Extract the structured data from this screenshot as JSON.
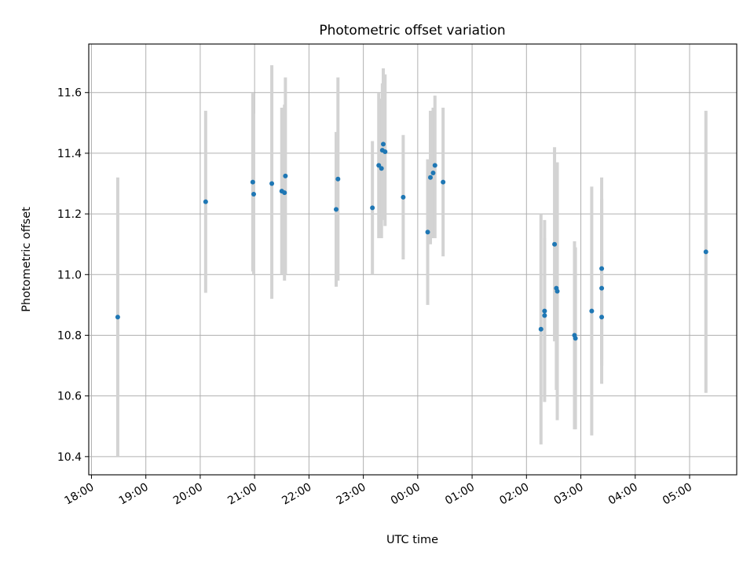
{
  "chart_data": {
    "type": "scatter",
    "title": "Photometric offset variation",
    "xlabel": "UTC time",
    "ylabel": "Photometric offset",
    "x_tick_labels": [
      "18:00",
      "19:00",
      "20:00",
      "21:00",
      "22:00",
      "23:00",
      "00:00",
      "01:00",
      "02:00",
      "03:00",
      "04:00",
      "05:00"
    ],
    "y_ticks": [
      10.4,
      10.6,
      10.8,
      11.0,
      11.2,
      11.4,
      11.6
    ],
    "y_tick_labels": [
      "10.4",
      "10.6",
      "10.8",
      "11.0",
      "11.2",
      "11.4",
      "11.6"
    ],
    "x_range": [
      "17:57",
      "05:52"
    ],
    "y_range": [
      10.34,
      11.76
    ],
    "grid": true,
    "legend": "none",
    "colors": {
      "marker": "#1f77b4",
      "errorbar": "#d3d3d3",
      "grid": "#b0b0b0"
    },
    "points": [
      {
        "x": "18:29",
        "y": 10.86,
        "y_low": 10.4,
        "y_high": 11.32
      },
      {
        "x": "20:06",
        "y": 11.24,
        "y_low": 10.94,
        "y_high": 11.54
      },
      {
        "x": "20:58",
        "y": 11.305,
        "y_low": 11.01,
        "y_high": 11.6
      },
      {
        "x": "20:59",
        "y": 11.265,
        "y_low": 11.0,
        "y_high": 11.53
      },
      {
        "x": "21:19",
        "y": 11.3,
        "y_low": 10.92,
        "y_high": 11.69
      },
      {
        "x": "21:30",
        "y": 11.275,
        "y_low": 11.0,
        "y_high": 11.55
      },
      {
        "x": "21:33",
        "y": 11.27,
        "y_low": 10.98,
        "y_high": 11.56
      },
      {
        "x": "21:34",
        "y": 11.325,
        "y_low": 11.0,
        "y_high": 11.65
      },
      {
        "x": "22:30",
        "y": 11.215,
        "y_low": 10.96,
        "y_high": 11.47
      },
      {
        "x": "22:32",
        "y": 11.315,
        "y_low": 10.98,
        "y_high": 11.65
      },
      {
        "x": "23:10",
        "y": 11.22,
        "y_low": 11.0,
        "y_high": 11.44
      },
      {
        "x": "23:17",
        "y": 11.36,
        "y_low": 11.12,
        "y_high": 11.6
      },
      {
        "x": "23:20",
        "y": 11.35,
        "y_low": 11.12,
        "y_high": 11.58
      },
      {
        "x": "23:21",
        "y": 11.41,
        "y_low": 11.19,
        "y_high": 11.63
      },
      {
        "x": "23:22",
        "y": 11.43,
        "y_low": 11.18,
        "y_high": 11.68
      },
      {
        "x": "23:24",
        "y": 11.405,
        "y_low": 11.16,
        "y_high": 11.66
      },
      {
        "x": "23:44",
        "y": 11.255,
        "y_low": 11.05,
        "y_high": 11.46
      },
      {
        "x": "00:11",
        "y": 11.14,
        "y_low": 10.9,
        "y_high": 11.38
      },
      {
        "x": "00:14",
        "y": 11.32,
        "y_low": 11.1,
        "y_high": 11.54
      },
      {
        "x": "00:17",
        "y": 11.335,
        "y_low": 11.12,
        "y_high": 11.55
      },
      {
        "x": "00:19",
        "y": 11.36,
        "y_low": 11.12,
        "y_high": 11.59
      },
      {
        "x": "00:28",
        "y": 11.305,
        "y_low": 11.06,
        "y_high": 11.55
      },
      {
        "x": "02:16",
        "y": 10.82,
        "y_low": 10.44,
        "y_high": 11.2
      },
      {
        "x": "02:20",
        "y": 10.88,
        "y_low": 10.58,
        "y_high": 11.18
      },
      {
        "x": "02:20",
        "y": 10.865,
        "y_low": 10.6,
        "y_high": 11.12
      },
      {
        "x": "02:31",
        "y": 11.1,
        "y_low": 10.78,
        "y_high": 11.42
      },
      {
        "x": "02:33",
        "y": 10.955,
        "y_low": 10.62,
        "y_high": 11.3
      },
      {
        "x": "02:34",
        "y": 10.945,
        "y_low": 10.52,
        "y_high": 11.37
      },
      {
        "x": "02:53",
        "y": 10.8,
        "y_low": 10.49,
        "y_high": 11.11
      },
      {
        "x": "02:54",
        "y": 10.79,
        "y_low": 10.49,
        "y_high": 11.09
      },
      {
        "x": "03:12",
        "y": 10.88,
        "y_low": 10.47,
        "y_high": 11.29
      },
      {
        "x": "03:23",
        "y": 10.955,
        "y_low": 10.7,
        "y_high": 11.25
      },
      {
        "x": "03:23",
        "y": 11.02,
        "y_low": 10.72,
        "y_high": 11.32
      },
      {
        "x": "03:23",
        "y": 10.86,
        "y_low": 10.64,
        "y_high": 11.08
      },
      {
        "x": "05:18",
        "y": 11.075,
        "y_low": 10.61,
        "y_high": 11.54
      }
    ]
  }
}
